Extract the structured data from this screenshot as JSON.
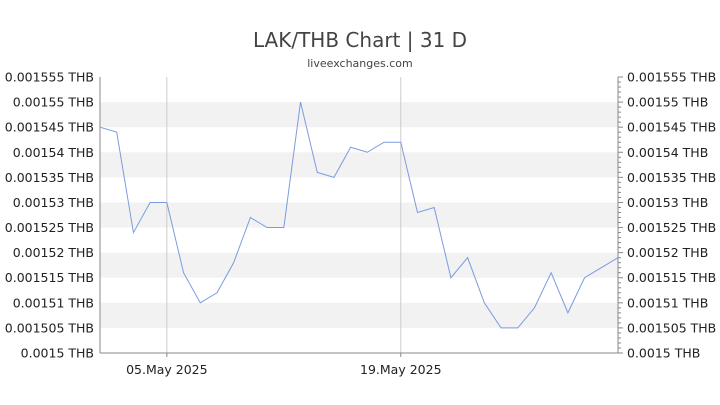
{
  "chart_data": {
    "type": "line",
    "title": "LAK/THB Chart | 31 D",
    "subtitle": "liveexchanges.com",
    "ylim": [
      0.0015,
      0.001555
    ],
    "y_ticks": [
      "0.001555 THB",
      "0.00155 THB",
      "0.001545 THB",
      "0.00154 THB",
      "0.001535 THB",
      "0.00153 THB",
      "0.001525 THB",
      "0.00152 THB",
      "0.001515 THB",
      "0.00151 THB",
      "0.001505 THB",
      "0.0015 THB"
    ],
    "y_tick_values": [
      0.001555,
      0.00155,
      0.001545,
      0.00154,
      0.001535,
      0.00153,
      0.001525,
      0.00152,
      0.001515,
      0.00151,
      0.001505,
      0.0015
    ],
    "x_ticks": [
      "05.May 2025",
      "19.May 2025"
    ],
    "x_tick_days": [
      4,
      18
    ],
    "series": [
      {
        "color": "#7b9be0",
        "x": [
          0,
          1,
          2,
          3,
          4,
          5,
          6,
          7,
          8,
          9,
          10,
          11,
          12,
          13,
          14,
          15,
          16,
          17,
          18,
          19,
          20,
          21,
          22,
          23,
          24,
          25,
          26,
          27,
          28,
          29,
          30,
          31
        ],
        "values": [
          0.001545,
          0.001544,
          0.001524,
          0.00153,
          0.00153,
          0.001516,
          0.00151,
          0.001512,
          0.001518,
          0.001527,
          0.001525,
          0.001525,
          0.00155,
          0.001536,
          0.001535,
          0.001541,
          0.00154,
          0.001542,
          0.001542,
          0.001528,
          0.001529,
          0.001515,
          0.001519,
          0.00151,
          0.001505,
          0.001505,
          0.001509,
          0.001516,
          0.001508,
          0.001515,
          0.001517,
          0.001519
        ]
      }
    ]
  }
}
